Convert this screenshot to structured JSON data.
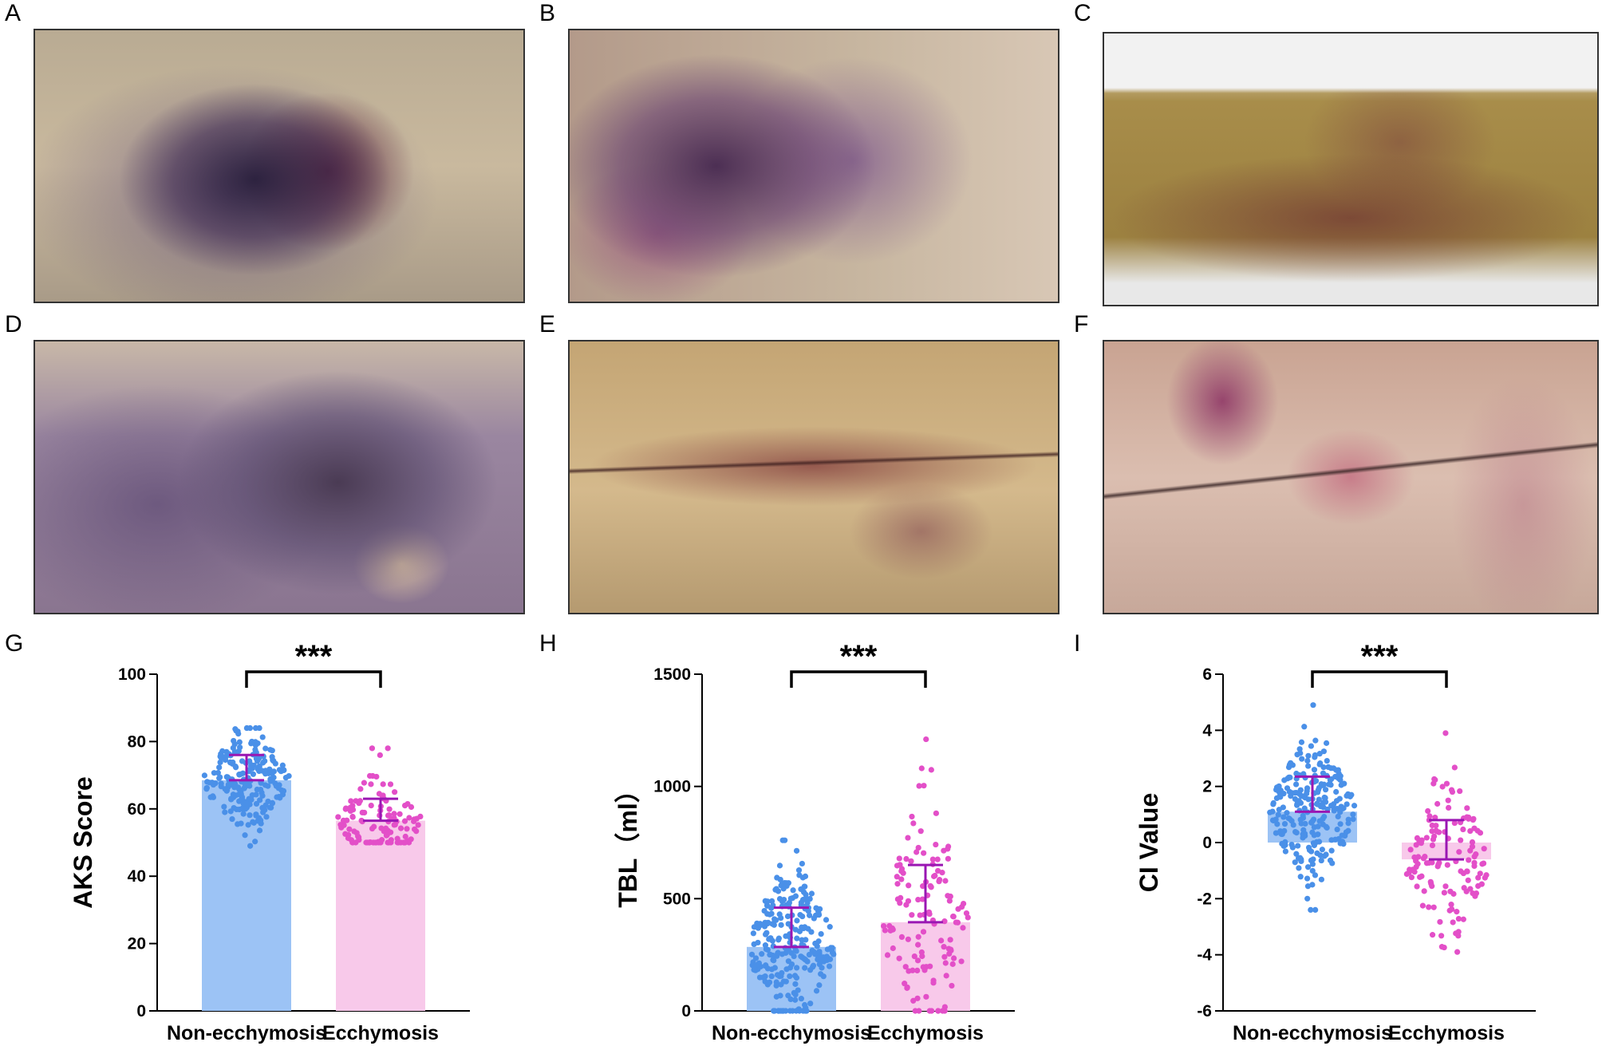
{
  "panels": {
    "photo_letters": [
      "A",
      "B",
      "C",
      "D",
      "E",
      "F"
    ],
    "chart_letters": [
      "G",
      "H",
      "I"
    ]
  },
  "colors": {
    "non_ecchymosis_bar": "#9cc3f5",
    "non_ecchymosis_dots": "#4a90e8",
    "ecchymosis_bar": "#f8c9ea",
    "ecchymosis_dots": "#e34fc8",
    "error_bar": "#9a17b3"
  },
  "chart_data": [
    {
      "type": "bar",
      "categories": [
        "Non-ecchymosis",
        "Ecchymosis"
      ],
      "values": [
        68.5,
        56.5
      ],
      "sd_upper": [
        76,
        63
      ],
      "ylabel": "AKS Score",
      "ylim": [
        0,
        100
      ],
      "yticks": [
        "0",
        "20",
        "40",
        "60",
        "80",
        "100"
      ],
      "significance": "***",
      "point_ranges": [
        [
          49,
          84
        ],
        [
          50,
          78
        ]
      ],
      "point_counts": [
        230,
        120
      ]
    },
    {
      "type": "bar",
      "categories": [
        "Non-ecchymosis",
        "Ecchymosis"
      ],
      "values": [
        285,
        395
      ],
      "sd_upper": [
        460,
        650
      ],
      "ylabel": "TBL（ml）",
      "ylim": [
        0,
        1500
      ],
      "yticks": [
        "0",
        "500",
        "1000",
        "1500"
      ],
      "significance": "***",
      "point_ranges": [
        [
          0,
          760
        ],
        [
          0,
          1210
        ]
      ],
      "point_counts": [
        260,
        130
      ]
    },
    {
      "type": "bar",
      "categories": [
        "Non-ecchymosis",
        "Ecchymosis"
      ],
      "values": [
        1.1,
        -0.6
      ],
      "sd_upper": [
        2.35,
        0.8
      ],
      "ylabel": "CI Value",
      "ylim": [
        -6,
        6
      ],
      "yticks": [
        "-6",
        "-4",
        "-2",
        "0",
        "2",
        "4",
        "6"
      ],
      "significance": "***",
      "point_ranges": [
        [
          -2.4,
          4.9
        ],
        [
          -3.9,
          3.9
        ]
      ],
      "point_counts": [
        250,
        130
      ]
    }
  ]
}
